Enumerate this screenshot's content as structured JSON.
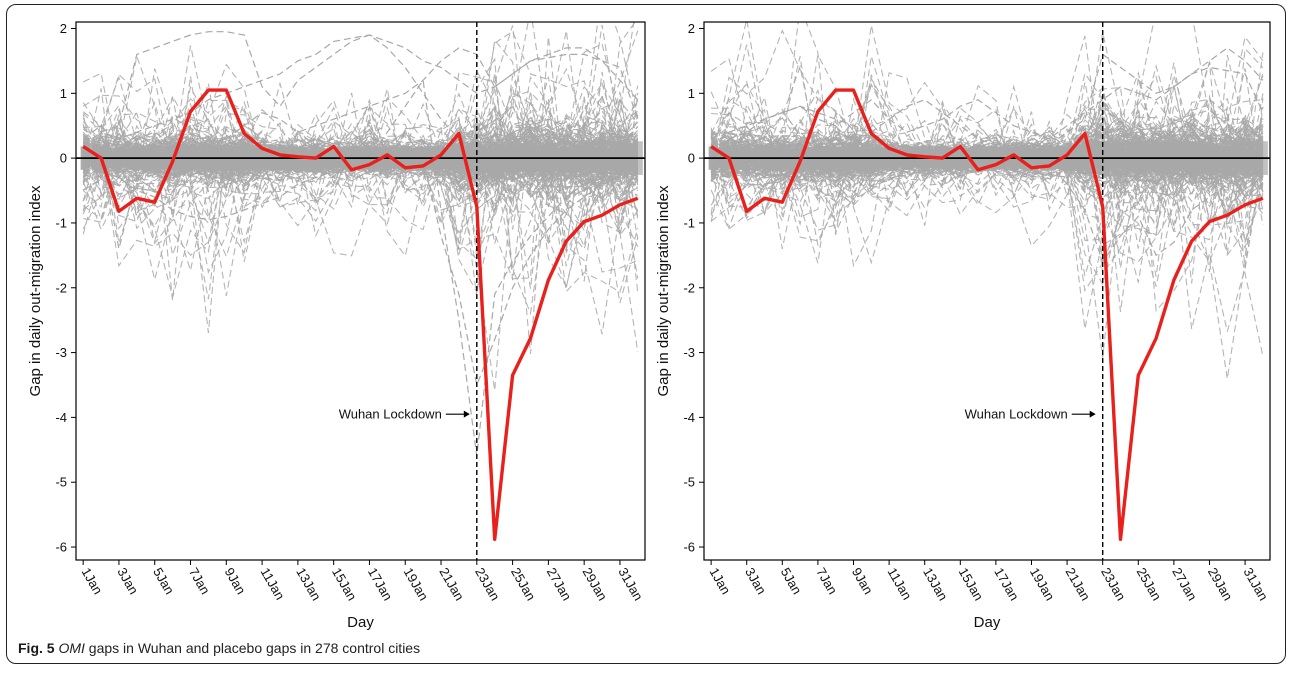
{
  "caption": {
    "figure_number": "Fig. 5",
    "emphasis": "OMI",
    "text": " gaps in Wuhan and placebo gaps in 278 control cities"
  },
  "chart_data": [
    {
      "type": "line",
      "panel": "left",
      "title": "",
      "xlabel": "Day",
      "ylabel": "Gap in daily out-migration index",
      "ylim": [
        -6.2,
        2.1
      ],
      "xlim": [
        0.6,
        32.4
      ],
      "y_ticks": [
        2,
        1,
        0,
        -1,
        -2,
        -3,
        -4,
        -5,
        -6
      ],
      "y_tick_labels": [
        "2",
        "1",
        "0",
        "-1",
        "-2",
        "-3",
        "-4",
        "-5",
        "-6"
      ],
      "x_ticks": [
        1,
        3,
        5,
        7,
        9,
        11,
        13,
        15,
        17,
        19,
        21,
        23,
        25,
        27,
        29,
        31
      ],
      "x_tick_labels": [
        "1Jan",
        "3Jan",
        "5Jan",
        "7Jan",
        "9Jan",
        "11Jan",
        "13Jan",
        "15Jan",
        "17Jan",
        "19Jan",
        "21Jan",
        "23Jan",
        "25Jan",
        "27Jan",
        "29Jan",
        "31Jan"
      ],
      "reference_line_x": 23,
      "annotation": {
        "text": "Wuhan Lockdown",
        "x": 23,
        "y": -3.95
      },
      "wuhan_series": {
        "x": [
          1,
          2,
          3,
          4,
          5,
          6,
          7,
          8,
          9,
          10,
          11,
          12,
          13,
          14,
          15,
          16,
          17,
          18,
          19,
          20,
          21,
          22,
          23,
          24,
          25,
          26,
          27,
          28,
          29,
          30,
          31,
          32
        ],
        "values": [
          0.18,
          0.0,
          -0.82,
          -0.62,
          -0.68,
          -0.05,
          0.72,
          1.05,
          1.05,
          0.38,
          0.15,
          0.05,
          0.02,
          0.0,
          0.18,
          -0.18,
          -0.1,
          0.05,
          -0.15,
          -0.12,
          0.05,
          0.38,
          -0.75,
          -5.88,
          -3.35,
          -2.78,
          -1.88,
          -1.28,
          -0.98,
          -0.88,
          -0.72,
          -0.62
        ],
        "color": "#e8211c"
      },
      "placebo_color": "#a8a8a8",
      "placebo_count": 278
    },
    {
      "type": "line",
      "panel": "right",
      "title": "",
      "xlabel": "Day",
      "ylabel": "Gap in daily out-migration index",
      "ylim": [
        -6.2,
        2.1
      ],
      "xlim": [
        0.6,
        32.4
      ],
      "y_ticks": [
        2,
        1,
        0,
        -1,
        -2,
        -3,
        -4,
        -5,
        -6
      ],
      "y_tick_labels": [
        "2",
        "1",
        "0",
        "-1",
        "-2",
        "-3",
        "-4",
        "-5",
        "-6"
      ],
      "x_ticks": [
        1,
        3,
        5,
        7,
        9,
        11,
        13,
        15,
        17,
        19,
        21,
        23,
        25,
        27,
        29,
        31
      ],
      "x_tick_labels": [
        "1Jan",
        "3Jan",
        "5Jan",
        "7Jan",
        "9Jan",
        "11Jan",
        "13Jan",
        "15Jan",
        "17Jan",
        "19Jan",
        "21Jan",
        "23Jan",
        "25Jan",
        "27Jan",
        "29Jan",
        "31Jan"
      ],
      "reference_line_x": 23,
      "annotation": {
        "text": "Wuhan Lockdown",
        "x": 23,
        "y": -3.95
      },
      "wuhan_series": {
        "x": [
          1,
          2,
          3,
          4,
          5,
          6,
          7,
          8,
          9,
          10,
          11,
          12,
          13,
          14,
          15,
          16,
          17,
          18,
          19,
          20,
          21,
          22,
          23,
          24,
          25,
          26,
          27,
          28,
          29,
          30,
          31,
          32
        ],
        "values": [
          0.18,
          0.0,
          -0.82,
          -0.62,
          -0.68,
          -0.05,
          0.72,
          1.05,
          1.05,
          0.38,
          0.15,
          0.05,
          0.02,
          0.0,
          0.18,
          -0.18,
          -0.1,
          0.05,
          -0.15,
          -0.12,
          0.05,
          0.38,
          -0.75,
          -5.88,
          -3.35,
          -2.78,
          -1.88,
          -1.28,
          -0.98,
          -0.88,
          -0.72,
          -0.62
        ],
        "color": "#e8211c"
      },
      "placebo_color": "#a8a8a8",
      "placebo_count": 278
    }
  ]
}
